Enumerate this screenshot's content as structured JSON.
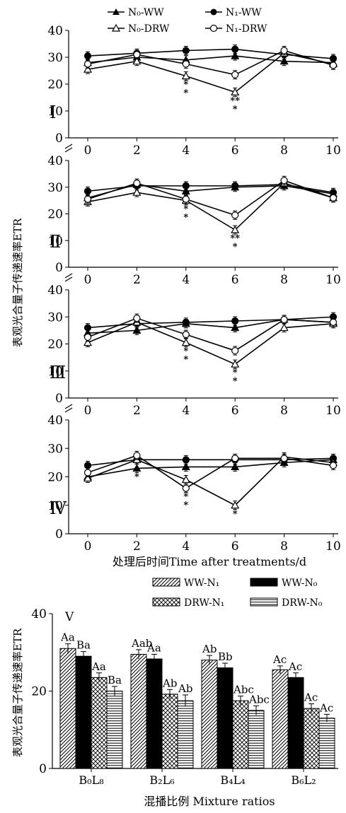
{
  "chart_data": [
    {
      "type": "line",
      "panels": [
        {
          "label": "Ⅰ",
          "ylim": [
            0,
            40
          ],
          "yticks": [
            0,
            10,
            20,
            30,
            40
          ],
          "x": [
            0,
            2,
            4,
            6,
            8,
            10
          ],
          "series": [
            {
              "name": "N₀-WW",
              "values": [
                28,
                30,
                29,
                30.5,
                28.5,
                28
              ]
            },
            {
              "name": "N₁-WW",
              "values": [
                30.5,
                31.5,
                32.5,
                33,
                31,
                29.5
              ]
            },
            {
              "name": "N₀-DRW",
              "values": [
                25.5,
                28.5,
                23,
                17,
                31.5,
                27.5
              ]
            },
            {
              "name": "N₁-DRW",
              "values": [
                27.5,
                31,
                27.5,
                23.5,
                32.5,
                27
              ]
            }
          ],
          "stars": [
            {
              "x": 4,
              "text": "*\n*"
            },
            {
              "x": 6,
              "text": "**\n*"
            }
          ]
        },
        {
          "label": "Ⅱ",
          "ylim": [
            0,
            40
          ],
          "yticks": [
            0,
            10,
            20,
            30,
            40
          ],
          "x": [
            0,
            2,
            4,
            6,
            8,
            10
          ],
          "series": [
            {
              "name": "N₀-WW",
              "values": [
                26,
                31,
                28.5,
                30,
                30.5,
                27.5
              ]
            },
            {
              "name": "N₁-WW",
              "values": [
                28.5,
                30.5,
                30.5,
                30.5,
                31,
                28
              ]
            },
            {
              "name": "N₀-DRW",
              "values": [
                24.5,
                28,
                25,
                14,
                31.5,
                26
              ]
            },
            {
              "name": "N₁-DRW",
              "values": [
                25.5,
                31.5,
                25.5,
                19.5,
                32.5,
                26
              ]
            }
          ],
          "stars": [
            {
              "x": 4,
              "text": "*\n*"
            },
            {
              "x": 6,
              "text": "**\n*"
            }
          ]
        },
        {
          "label": "Ⅲ",
          "ylim": [
            0,
            40
          ],
          "yticks": [
            0,
            10,
            20,
            30,
            40
          ],
          "x": [
            0,
            2,
            4,
            6,
            8,
            10
          ],
          "series": [
            {
              "name": "N₀-WW",
              "values": [
                24,
                25,
                27.5,
                26,
                29,
                28
              ]
            },
            {
              "name": "N₁-WW",
              "values": [
                26,
                27.5,
                28,
                28.5,
                29,
                30
              ]
            },
            {
              "name": "N₀-DRW",
              "values": [
                20.5,
                28,
                20.5,
                12.5,
                26,
                27.5
              ]
            },
            {
              "name": "N₁-DRW",
              "values": [
                22.5,
                29.5,
                23.5,
                17.5,
                29,
                28
              ]
            }
          ],
          "stars": [
            {
              "x": 4,
              "text": "*\n*"
            },
            {
              "x": 6,
              "text": "*\n*"
            }
          ]
        },
        {
          "label": "Ⅳ",
          "ylim": [
            0,
            40
          ],
          "yticks": [
            0,
            10,
            20,
            30,
            40
          ],
          "x": [
            0,
            2,
            4,
            6,
            8,
            10
          ],
          "series": [
            {
              "name": "N₀-WW",
              "values": [
                20,
                23,
                23.5,
                23.5,
                25,
                26
              ]
            },
            {
              "name": "N₁-WW",
              "values": [
                24,
                26,
                26,
                26,
                26,
                26.5
              ]
            },
            {
              "name": "N₀-DRW",
              "values": [
                19.5,
                26,
                19,
                10,
                27,
                25
              ]
            },
            {
              "name": "N₁-DRW",
              "values": [
                21.5,
                27.5,
                16,
                26.5,
                26.5,
                24
              ]
            }
          ],
          "stars": [
            {
              "x": 2,
              "text": "*"
            },
            {
              "x": 4,
              "text": "*\n*"
            },
            {
              "x": 6,
              "text": "*"
            }
          ]
        }
      ],
      "xticks": [
        "0",
        "2",
        "4",
        "6",
        "8",
        "10"
      ],
      "xlabel": "处理后时间Time after treatments/d",
      "ylabel": "表观光合量子传递速率ETR",
      "legend_position": "top"
    },
    {
      "type": "bar",
      "categories": [
        "B₀L₈",
        "B₂L₆",
        "B₄L₄",
        "B₆L₂"
      ],
      "series": [
        {
          "name": "WW-N₁",
          "values": [
            31,
            29.5,
            28,
            25.5
          ],
          "errors": [
            1.2,
            1.2,
            1.2,
            1.0
          ],
          "labels": [
            "Aa",
            "Aab",
            "Ab",
            "Ac"
          ],
          "pattern": "diag"
        },
        {
          "name": "WW-N₀",
          "values": [
            29,
            28.3,
            26,
            23.5
          ],
          "errors": [
            1.2,
            1.2,
            1.2,
            1.2
          ],
          "labels": [
            "Ba",
            "Aa",
            "Bb",
            "Ac"
          ],
          "pattern": "solid"
        },
        {
          "name": "DRW-N₁",
          "values": [
            23.5,
            19.2,
            17.5,
            15.5
          ],
          "errors": [
            1.2,
            1.2,
            1.2,
            1.2
          ],
          "labels": [
            "Aa",
            "Ab",
            "Abc",
            "Ac"
          ],
          "pattern": "cross"
        },
        {
          "name": "DRW-N₀",
          "values": [
            20,
            17.5,
            15,
            13
          ],
          "errors": [
            1.2,
            1.5,
            1.2,
            1.0
          ],
          "labels": [
            "Ba",
            "Ab",
            "Abc",
            "Ac"
          ],
          "pattern": "hlines"
        }
      ],
      "panel_label": "Ⅴ",
      "ylim": [
        0,
        40
      ],
      "yticks": [
        0,
        20,
        40
      ],
      "xlabel": "混播比例 Mixture ratios",
      "ylabel": "表观光合量子传递速率ETR",
      "legend_position": "top"
    }
  ]
}
